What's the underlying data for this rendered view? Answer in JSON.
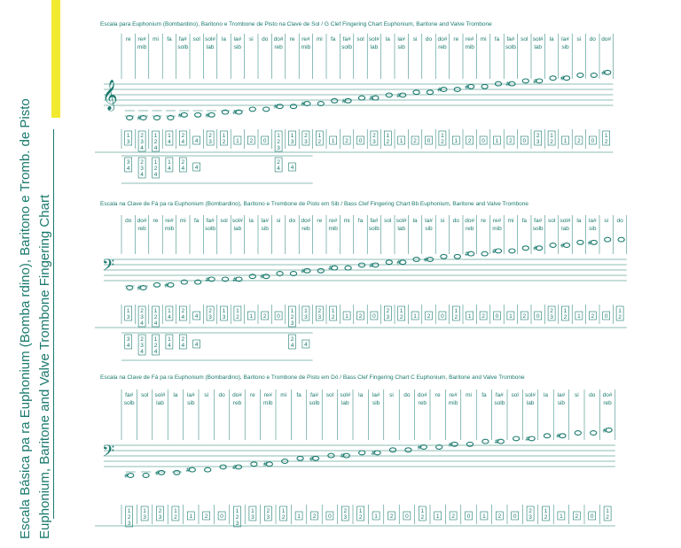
{
  "side_title": {
    "line1": "Escala Básica pa  ra Euphonium (Bomba  rdino), Baritono e   Tromb. de Pisto",
    "line2": "Euphonium, Baritone and      Valve  Trombone Fingering Chart"
  },
  "colors": {
    "ink": "#1a7a6e",
    "accent": "#f2ea2e"
  },
  "charts": [
    {
      "title": "Escala para Euphonium (Bombardino), Baritono e  Trombone de Pisto na Clave de Sol / G Clef Fingering Chart Euphonium, Baritone and    Valve Trombone",
      "clef": "treble",
      "notes": [
        {
          "n": "re",
          "f": [
            "1",
            "3"
          ],
          "a": "",
          "p": 0
        },
        {
          "n": "re#",
          "n2": "mib",
          "f": [
            "2",
            "3",
            "4"
          ],
          "a": "#",
          "p": 0
        },
        {
          "n": "mi",
          "f": [
            "1",
            "2",
            "4"
          ],
          "a": "",
          "p": 0
        },
        {
          "n": "fa",
          "f": [
            "1",
            "4"
          ],
          "a": "",
          "p": 0
        },
        {
          "n": "fa#",
          "n2": "solb",
          "f": [
            "2",
            "4"
          ],
          "a": "#",
          "p": 1
        },
        {
          "n": "sol",
          "f": [
            "4"
          ],
          "a": "",
          "p": 1
        },
        {
          "n": "sol#",
          "n2": "lab",
          "f": [
            "2",
            "3"
          ],
          "a": "#",
          "p": 1
        },
        {
          "n": "la",
          "f": [
            "1",
            "2"
          ],
          "a": "",
          "p": 2
        },
        {
          "n": "la#",
          "n2": "sib",
          "f": [
            "1"
          ],
          "a": "#",
          "p": 2
        },
        {
          "n": "si",
          "f": [
            "2"
          ],
          "a": "",
          "p": 3
        },
        {
          "n": "do",
          "f": [
            "0"
          ],
          "a": "",
          "p": 3
        },
        {
          "n": "do#",
          "n2": "reb",
          "f": [
            "1",
            "2",
            "3"
          ],
          "a": "#",
          "p": 4
        },
        {
          "n": "re",
          "f": [
            "1",
            "3"
          ],
          "a": "",
          "p": 4
        },
        {
          "n": "re#",
          "n2": "mib",
          "f": [
            "2",
            "3"
          ],
          "a": "#",
          "p": 5
        },
        {
          "n": "mi",
          "f": [
            "1",
            "2"
          ],
          "a": "",
          "p": 5
        },
        {
          "n": "fa",
          "f": [
            "1"
          ],
          "a": "",
          "p": 6
        },
        {
          "n": "fa#",
          "n2": "solb",
          "f": [
            "2"
          ],
          "a": "#",
          "p": 6
        },
        {
          "n": "sol",
          "f": [
            "0"
          ],
          "a": "",
          "p": 7
        },
        {
          "n": "sol#",
          "n2": "lab",
          "f": [
            "2",
            "3"
          ],
          "a": "#",
          "p": 7
        },
        {
          "n": "la",
          "f": [
            "1",
            "2"
          ],
          "a": "",
          "p": 8
        },
        {
          "n": "la#",
          "n2": "sib",
          "f": [
            "1"
          ],
          "a": "#",
          "p": 8
        },
        {
          "n": "si",
          "f": [
            "2"
          ],
          "a": "",
          "p": 9
        },
        {
          "n": "do",
          "f": [
            "0"
          ],
          "a": "",
          "p": 9
        },
        {
          "n": "do#",
          "n2": "reb",
          "f": [
            "1",
            "2"
          ],
          "a": "#",
          "p": 10
        },
        {
          "n": "re",
          "f": [
            "1"
          ],
          "a": "",
          "p": 10
        },
        {
          "n": "re#",
          "n2": "mib",
          "f": [
            "2"
          ],
          "a": "#",
          "p": 11
        },
        {
          "n": "mi",
          "f": [
            "0"
          ],
          "a": "",
          "p": 11
        },
        {
          "n": "fa",
          "f": [
            "1"
          ],
          "a": "",
          "p": 12
        },
        {
          "n": "fa#",
          "n2": "solb",
          "f": [
            "2"
          ],
          "a": "#",
          "p": 12
        },
        {
          "n": "sol",
          "f": [
            "0"
          ],
          "a": "",
          "p": 13
        },
        {
          "n": "sol#",
          "n2": "lab",
          "f": [
            "2",
            "3"
          ],
          "a": "#",
          "p": 13
        },
        {
          "n": "la",
          "f": [
            "1",
            "2"
          ],
          "a": "",
          "p": 14
        },
        {
          "n": "la#",
          "n2": "sib",
          "f": [
            "1"
          ],
          "a": "#",
          "p": 14
        },
        {
          "n": "si",
          "f": [
            "2"
          ],
          "a": "",
          "p": 15
        },
        {
          "n": "do",
          "f": [
            "0"
          ],
          "a": "",
          "p": 15
        },
        {
          "n": "do#",
          "f": [
            "1",
            "2"
          ],
          "a": "#",
          "p": 16
        }
      ],
      "alt_fingerings": [
        {
          "col": 0,
          "f": [
            "3",
            "4"
          ]
        },
        {
          "col": 1,
          "f": [
            "2",
            "3",
            "4"
          ]
        },
        {
          "col": 2,
          "f": [
            "1",
            "2",
            "4"
          ]
        },
        {
          "col": 3,
          "f": [
            "1",
            "4"
          ]
        },
        {
          "col": 4,
          "f": [
            "2",
            "4"
          ]
        },
        {
          "col": 5,
          "f": [
            "4"
          ]
        },
        {
          "col": 11,
          "f": [
            "2",
            "4"
          ]
        },
        {
          "col": 12,
          "f": [
            "4"
          ]
        }
      ]
    },
    {
      "title": "Escala na Clave de Fá pa ra Euphonium (Bombardino), Baritono e  Trombone de Pisto em Sib / Bass Clef Fingering Chart Bb Euphonium, Baritone and    Valve Trombone",
      "clef": "bass",
      "notes": [
        {
          "n": "do",
          "f": [
            "1",
            "3"
          ],
          "a": "",
          "p": 0
        },
        {
          "n": "do#",
          "n2": "reb",
          "f": [
            "2",
            "3",
            "4"
          ],
          "a": "#",
          "p": 0
        },
        {
          "n": "re",
          "f": [
            "1",
            "2",
            "4"
          ],
          "a": "",
          "p": 1
        },
        {
          "n": "re#",
          "n2": "mib",
          "f": [
            "1",
            "4"
          ],
          "a": "#",
          "p": 1
        },
        {
          "n": "mi",
          "f": [
            "2",
            "4"
          ],
          "a": "",
          "p": 2
        },
        {
          "n": "fa",
          "f": [
            "4"
          ],
          "a": "",
          "p": 2
        },
        {
          "n": "fa#",
          "n2": "solb",
          "f": [
            "2",
            "3"
          ],
          "a": "#",
          "p": 3
        },
        {
          "n": "sol",
          "f": [
            "1",
            "3"
          ],
          "a": "",
          "p": 3
        },
        {
          "n": "sol#",
          "n2": "lab",
          "f": [
            "1",
            "2"
          ],
          "a": "#",
          "p": 3
        },
        {
          "n": "la",
          "f": [
            "1"
          ],
          "a": "",
          "p": 4
        },
        {
          "n": "la#",
          "n2": "sib",
          "f": [
            "2"
          ],
          "a": "#",
          "p": 4
        },
        {
          "n": "si",
          "f": [
            "0"
          ],
          "a": "",
          "p": 5
        },
        {
          "n": "do",
          "f": [
            "1",
            "2",
            "3"
          ],
          "a": "",
          "p": 5
        },
        {
          "n": "do#",
          "n2": "reb",
          "f": [
            "1",
            "3"
          ],
          "a": "#",
          "p": 6
        },
        {
          "n": "re",
          "f": [
            "2",
            "3"
          ],
          "a": "",
          "p": 6
        },
        {
          "n": "re#",
          "n2": "mib",
          "f": [
            "1",
            "2"
          ],
          "a": "#",
          "p": 7
        },
        {
          "n": "mi",
          "f": [
            "1"
          ],
          "a": "",
          "p": 7
        },
        {
          "n": "fa",
          "f": [
            "2"
          ],
          "a": "",
          "p": 8
        },
        {
          "n": "fa#",
          "n2": "solb",
          "f": [
            "0"
          ],
          "a": "#",
          "p": 8
        },
        {
          "n": "sol",
          "f": [
            "2",
            "3"
          ],
          "a": "",
          "p": 9
        },
        {
          "n": "sol#",
          "n2": "lab",
          "f": [
            "1",
            "2"
          ],
          "a": "#",
          "p": 9
        },
        {
          "n": "la",
          "f": [
            "1"
          ],
          "a": "",
          "p": 10
        },
        {
          "n": "la#",
          "n2": "sib",
          "f": [
            "2"
          ],
          "a": "#",
          "p": 10
        },
        {
          "n": "si",
          "f": [
            "0"
          ],
          "a": "",
          "p": 11
        },
        {
          "n": "do",
          "f": [
            "1",
            "2"
          ],
          "a": "",
          "p": 11
        },
        {
          "n": "do#",
          "n2": "reb",
          "f": [
            "1"
          ],
          "a": "#",
          "p": 12
        },
        {
          "n": "re",
          "f": [
            "2"
          ],
          "a": "",
          "p": 12
        },
        {
          "n": "re#",
          "n2": "mib",
          "f": [
            "0"
          ],
          "a": "#",
          "p": 13
        },
        {
          "n": "mi",
          "f": [
            "1"
          ],
          "a": "",
          "p": 13
        },
        {
          "n": "fa",
          "f": [
            "2"
          ],
          "a": "",
          "p": 14
        },
        {
          "n": "fa#",
          "n2": "solb",
          "f": [
            "0"
          ],
          "a": "#",
          "p": 14
        },
        {
          "n": "sol",
          "f": [
            "2",
            "3"
          ],
          "a": "",
          "p": 15
        },
        {
          "n": "sol#",
          "n2": "lab",
          "f": [
            "1",
            "2"
          ],
          "a": "#",
          "p": 15
        },
        {
          "n": "la",
          "f": [
            "1"
          ],
          "a": "",
          "p": 16
        },
        {
          "n": "la#",
          "n2": "sib",
          "f": [
            "2"
          ],
          "a": "#",
          "p": 16
        },
        {
          "n": "si",
          "f": [
            "0"
          ],
          "a": "",
          "p": 17
        },
        {
          "n": "do",
          "f": [
            "1",
            "2"
          ],
          "a": "",
          "p": 17
        }
      ],
      "alt_fingerings": [
        {
          "col": 0,
          "f": [
            "3",
            "4"
          ]
        },
        {
          "col": 1,
          "f": [
            "2",
            "3",
            "4"
          ]
        },
        {
          "col": 2,
          "f": [
            "1",
            "2",
            "4"
          ]
        },
        {
          "col": 3,
          "f": [
            "1",
            "4"
          ]
        },
        {
          "col": 4,
          "f": [
            "2",
            "4"
          ]
        },
        {
          "col": 5,
          "f": [
            "4"
          ]
        },
        {
          "col": 12,
          "f": [
            "2",
            "4"
          ]
        },
        {
          "col": 13,
          "f": [
            "4"
          ]
        }
      ]
    },
    {
      "title": "Escala na Clave de Fá pa ra Euphonium (Bombardino), Baritono e  Trombone de Pisto em Dó / Bass Clef Fingering Chart C Euphonium, Baritone and    Valve Trombone",
      "clef": "bass",
      "notes": [
        {
          "n": "fa#",
          "n2": "solb",
          "f": [
            "1",
            "2",
            "3"
          ],
          "a": "#",
          "p": 0
        },
        {
          "n": "sol",
          "f": [
            "1",
            "3"
          ],
          "a": "",
          "p": 0
        },
        {
          "n": "sol#",
          "n2": "lab",
          "f": [
            "2",
            "3"
          ],
          "a": "#",
          "p": 1
        },
        {
          "n": "la",
          "f": [
            "1",
            "2"
          ],
          "a": "",
          "p": 1
        },
        {
          "n": "la#",
          "n2": "sib",
          "f": [
            "1"
          ],
          "a": "#",
          "p": 2
        },
        {
          "n": "si",
          "f": [
            "2"
          ],
          "a": "",
          "p": 2
        },
        {
          "n": "do",
          "f": [
            "0"
          ],
          "a": "",
          "p": 3
        },
        {
          "n": "do#",
          "n2": "reb",
          "f": [
            "1",
            "2",
            "3"
          ],
          "a": "#",
          "p": 3
        },
        {
          "n": "re",
          "f": [
            "1",
            "3"
          ],
          "a": "",
          "p": 4
        },
        {
          "n": "re#",
          "n2": "mib",
          "f": [
            "2",
            "3"
          ],
          "a": "#",
          "p": 4
        },
        {
          "n": "mi",
          "f": [
            "1",
            "2"
          ],
          "a": "",
          "p": 5
        },
        {
          "n": "fa",
          "f": [
            "1"
          ],
          "a": "",
          "p": 6
        },
        {
          "n": "fa#",
          "n2": "solb",
          "f": [
            "2"
          ],
          "a": "#",
          "p": 6
        },
        {
          "n": "sol",
          "f": [
            "0"
          ],
          "a": "",
          "p": 7
        },
        {
          "n": "sol#",
          "n2": "lab",
          "f": [
            "2",
            "3"
          ],
          "a": "#",
          "p": 7
        },
        {
          "n": "la",
          "f": [
            "1",
            "2"
          ],
          "a": "",
          "p": 8
        },
        {
          "n": "la#",
          "n2": "sib",
          "f": [
            "1"
          ],
          "a": "#",
          "p": 8
        },
        {
          "n": "si",
          "f": [
            "2"
          ],
          "a": "",
          "p": 9
        },
        {
          "n": "do",
          "f": [
            "0"
          ],
          "a": "",
          "p": 9
        },
        {
          "n": "do#",
          "n2": "reb",
          "f": [
            "1",
            "2"
          ],
          "a": "#",
          "p": 10
        },
        {
          "n": "re",
          "f": [
            "1"
          ],
          "a": "",
          "p": 10
        },
        {
          "n": "re#",
          "n2": "mib",
          "f": [
            "2"
          ],
          "a": "#",
          "p": 11
        },
        {
          "n": "mi",
          "f": [
            "0"
          ],
          "a": "",
          "p": 11
        },
        {
          "n": "fa",
          "f": [
            "1"
          ],
          "a": "",
          "p": 12
        },
        {
          "n": "fa#",
          "n2": "solb",
          "f": [
            "2"
          ],
          "a": "#",
          "p": 12
        },
        {
          "n": "sol",
          "f": [
            "0"
          ],
          "a": "",
          "p": 13
        },
        {
          "n": "sol#",
          "n2": "lab",
          "f": [
            "2",
            "3"
          ],
          "a": "#",
          "p": 13
        },
        {
          "n": "la",
          "f": [
            "1",
            "2"
          ],
          "a": "",
          "p": 14
        },
        {
          "n": "la#",
          "n2": "sib",
          "f": [
            "1"
          ],
          "a": "#",
          "p": 14
        },
        {
          "n": "si",
          "f": [
            "2"
          ],
          "a": "",
          "p": 15
        },
        {
          "n": "do",
          "f": [
            "0"
          ],
          "a": "",
          "p": 15
        },
        {
          "n": "do#",
          "n2": "reb",
          "f": [
            "1",
            "2"
          ],
          "a": "#",
          "p": 16
        }
      ],
      "alt_fingerings": []
    }
  ]
}
